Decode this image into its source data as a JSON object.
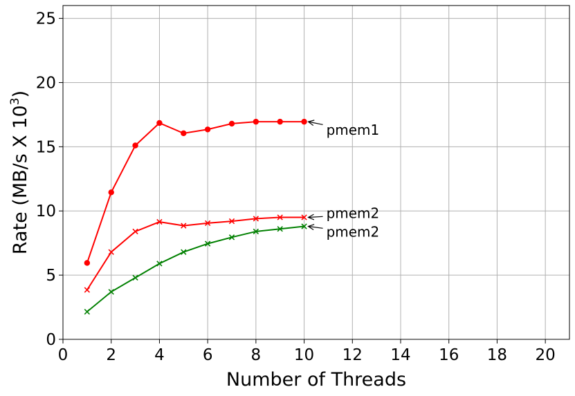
{
  "chart_data": {
    "type": "line",
    "xlabel": "Number of Threads",
    "ylabel_main": "Rate (MB/s X 10",
    "ylabel_sup": "3",
    "ylabel_close": ")",
    "xlim": [
      0,
      21
    ],
    "ylim": [
      0,
      26
    ],
    "xticks": [
      0,
      2,
      4,
      6,
      8,
      10,
      12,
      14,
      16,
      18,
      20
    ],
    "yticks": [
      0,
      5,
      10,
      15,
      20,
      25
    ],
    "grid": true,
    "series": [
      {
        "color": "#ff0000",
        "marker": "circle",
        "x": [
          1,
          2,
          3,
          4,
          5,
          6,
          7,
          8,
          9,
          10
        ],
        "y": [
          5.95,
          11.45,
          15.1,
          16.85,
          16.05,
          16.35,
          16.8,
          16.95,
          16.95,
          16.95
        ]
      },
      {
        "color": "#ff0000",
        "marker": "x",
        "x": [
          1,
          2,
          3,
          4,
          5,
          6,
          7,
          8,
          9,
          10
        ],
        "y": [
          3.85,
          6.8,
          8.4,
          9.15,
          8.85,
          9.05,
          9.2,
          9.4,
          9.5,
          9.5
        ]
      },
      {
        "color": "#008000",
        "marker": "x",
        "x": [
          1,
          2,
          3,
          4,
          5,
          6,
          7,
          8,
          9,
          10
        ],
        "y": [
          2.15,
          3.7,
          4.8,
          5.9,
          6.8,
          7.45,
          7.95,
          8.4,
          8.6,
          8.8
        ]
      }
    ],
    "annotations": [
      {
        "text": "pmem1",
        "x": 10,
        "y": 16.95
      },
      {
        "text": "pmem2",
        "x": 10,
        "y": 9.5
      },
      {
        "text": "pmem2",
        "x": 10,
        "y": 8.8
      }
    ]
  }
}
